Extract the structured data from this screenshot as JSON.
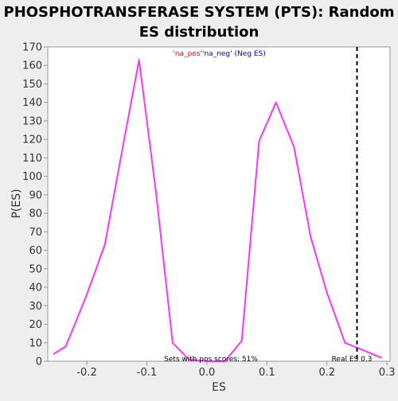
{
  "chart_data": {
    "type": "line",
    "title_line1": "PHOSPHOTRANSFERASE SYSTEM (PTS): Random",
    "title_line2": "ES distribution",
    "xlabel": "ES",
    "ylabel": "P(ES)",
    "xlim": [
      -0.265,
      0.305
    ],
    "ylim": [
      0,
      170
    ],
    "x_ticks": [
      -0.2,
      -0.1,
      0.0,
      0.1,
      0.2,
      0.3
    ],
    "x_tick_labels": [
      "-0.2",
      "-0.1",
      "0.0",
      "0.1",
      "0.2",
      "0.3"
    ],
    "y_ticks": [
      0,
      10,
      20,
      30,
      40,
      50,
      60,
      70,
      80,
      90,
      100,
      110,
      120,
      130,
      140,
      150,
      160,
      170
    ],
    "y_tick_labels": [
      "0",
      "10",
      "20",
      "30",
      "40",
      "50",
      "60",
      "70",
      "80",
      "90",
      "100",
      "110",
      "120",
      "130",
      "140",
      "150",
      "160",
      "170"
    ],
    "grid": false,
    "legend": {
      "pos_label": "'na_pos'",
      "neg_label": "'na_neg' (Neg ES)",
      "pos_color": "#ff0000",
      "neg_color": "#0000cc",
      "placement": "top-center"
    },
    "series": [
      {
        "color": "#ff33ff",
        "x": [
          -0.255,
          -0.235,
          -0.2,
          -0.17,
          -0.14,
          -0.113,
          -0.085,
          -0.057,
          -0.03,
          0.0,
          0.03,
          0.058,
          0.087,
          0.115,
          0.145,
          0.173,
          0.2,
          0.23,
          0.26,
          0.29
        ],
        "y": [
          4,
          8,
          36,
          63,
          116,
          163,
          92,
          10,
          1,
          0,
          0,
          11,
          119,
          140,
          116,
          67,
          37,
          10,
          6,
          2
        ]
      }
    ],
    "real_es": {
      "value": 0.25,
      "label": "Real ES 0.3",
      "style": "dashed",
      "color": "#000000"
    },
    "annotation": "Sets with pos scores: 51%",
    "colors": {
      "background": "#eeeeee",
      "plot_background": "#ffffff",
      "axis": "#999999",
      "tick_label": "#333333"
    }
  }
}
